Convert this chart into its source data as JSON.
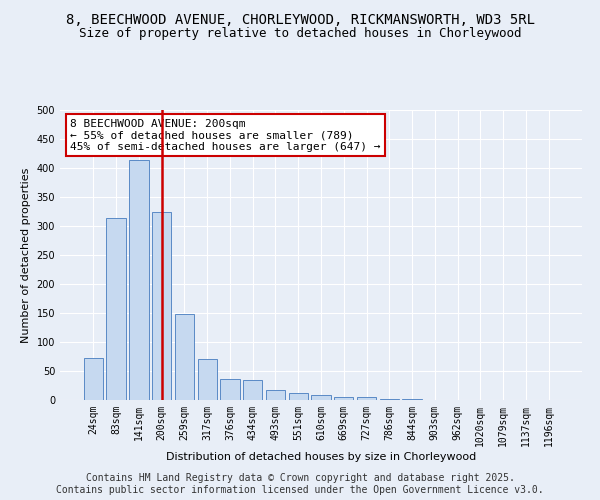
{
  "title_line1": "8, BEECHWOOD AVENUE, CHORLEYWOOD, RICKMANSWORTH, WD3 5RL",
  "title_line2": "Size of property relative to detached houses in Chorleywood",
  "xlabel": "Distribution of detached houses by size in Chorleywood",
  "ylabel": "Number of detached properties",
  "bar_labels": [
    "24sqm",
    "83sqm",
    "141sqm",
    "200sqm",
    "259sqm",
    "317sqm",
    "376sqm",
    "434sqm",
    "493sqm",
    "551sqm",
    "610sqm",
    "669sqm",
    "727sqm",
    "786sqm",
    "844sqm",
    "903sqm",
    "962sqm",
    "1020sqm",
    "1079sqm",
    "1137sqm",
    "1196sqm"
  ],
  "bar_values": [
    72,
    313,
    413,
    325,
    149,
    70,
    36,
    35,
    18,
    12,
    9,
    5,
    5,
    1,
    1,
    0,
    0,
    0,
    0,
    0,
    0
  ],
  "bar_color": "#c6d9f0",
  "bar_edge_color": "#5a8ac6",
  "vline_x": 3,
  "vline_color": "#cc0000",
  "annotation_text": "8 BEECHWOOD AVENUE: 200sqm\n← 55% of detached houses are smaller (789)\n45% of semi-detached houses are larger (647) →",
  "annotation_box_color": "#ffffff",
  "annotation_box_edge": "#cc0000",
  "annotation_fontsize": 8,
  "ylim": [
    0,
    500
  ],
  "yticks": [
    0,
    50,
    100,
    150,
    200,
    250,
    300,
    350,
    400,
    450,
    500
  ],
  "background_color": "#e8eef7",
  "plot_bg_color": "#e8eef7",
  "grid_color": "#ffffff",
  "footer_text": "Contains HM Land Registry data © Crown copyright and database right 2025.\nContains public sector information licensed under the Open Government Licence v3.0.",
  "title_fontsize": 10,
  "subtitle_fontsize": 9,
  "axis_label_fontsize": 8,
  "tick_fontsize": 7,
  "footer_fontsize": 7
}
